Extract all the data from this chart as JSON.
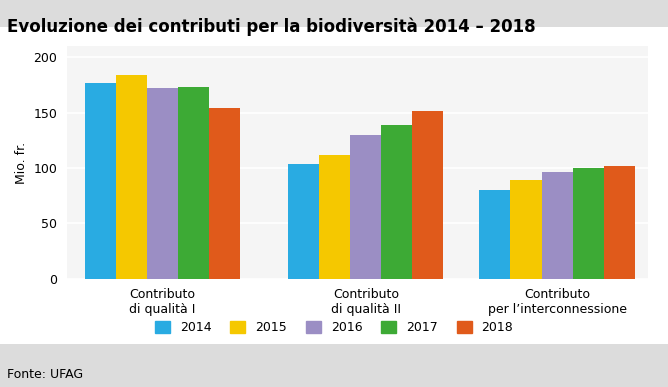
{
  "title": "Evoluzione dei contributi per la biodiversità 2014 – 2018",
  "ylabel": "Mio. fr.",
  "fonte": "Fonte: UFAG",
  "categories": [
    "Contributo\ndi qualità I",
    "Contributo\ndi qualità II",
    "Contributo\nper l’interconnessione"
  ],
  "years": [
    "2014",
    "2015",
    "2016",
    "2017",
    "2018"
  ],
  "values": [
    [
      177,
      184,
      172,
      173,
      154
    ],
    [
      104,
      112,
      130,
      139,
      152
    ],
    [
      80,
      89,
      96,
      100,
      102
    ]
  ],
  "colors": [
    "#29ABE2",
    "#F5C800",
    "#9B8EC4",
    "#3DAA35",
    "#E05A1B"
  ],
  "ylim": [
    0,
    210
  ],
  "yticks": [
    0,
    50,
    100,
    150,
    200
  ],
  "outer_background": "#DCDCDC",
  "inner_background": "#F0F0F0",
  "plot_background": "#F5F5F5",
  "title_fontsize": 12,
  "ylabel_fontsize": 9,
  "tick_fontsize": 9,
  "legend_fontsize": 9,
  "fonte_fontsize": 9,
  "bar_width": 0.13,
  "group_positions": [
    0.35,
    1.2,
    2.0
  ]
}
